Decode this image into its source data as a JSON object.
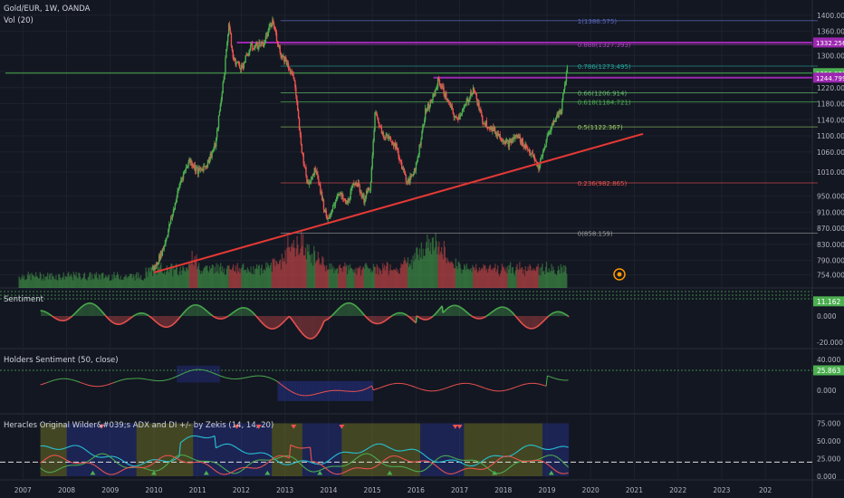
{
  "header": {
    "symbol_title": "Gold/EUR, 1W, OANDA",
    "volume_label": "Vol (20)"
  },
  "colors": {
    "background": "#131722",
    "up": "#4caf50",
    "down": "#ef5350",
    "purple": "#9c27b0",
    "trend": "#e53935",
    "fib_text": "#8bc34a"
  },
  "main_axis": {
    "ticks": [
      "1400.000",
      "1360.000",
      "1300.000",
      "1260.000",
      "1220.000",
      "1180.000",
      "1140.000",
      "1100.000",
      "1060.000",
      "1010.000",
      "950.000",
      "910.000",
      "870.000",
      "830.000",
      "790.000",
      "754.000"
    ],
    "price_tags": [
      {
        "label": "1332.256",
        "color": "#9c27b0"
      },
      {
        "label": "1256.021",
        "color": "#4caf50"
      },
      {
        "label": "1244.799",
        "color": "#9c27b0"
      }
    ]
  },
  "fib_levels": [
    {
      "label": "1(1386.575)",
      "value": 1386.575,
      "color": "#5c6bc0"
    },
    {
      "label": "0.888(1327.393)",
      "value": 1327.393,
      "color": "#ab47bc"
    },
    {
      "label": "0.786(1273.495)",
      "value": 1273.495,
      "color": "#26a69a"
    },
    {
      "label": "0.66(1206.914)",
      "value": 1206.914,
      "color": "#66bb6a"
    },
    {
      "label": "0.618(1184.721)",
      "value": 1184.721,
      "color": "#4caf50"
    },
    {
      "label": "0.5(1122.367)",
      "value": 1122.367,
      "color": "#9ccc65"
    },
    {
      "label": "0.236(982.865)",
      "value": 982.865,
      "color": "#ef5350"
    },
    {
      "label": "0(858.159)",
      "value": 858.159,
      "color": "#9e9e9e"
    }
  ],
  "sentiment_panel": {
    "title": "Sentiment",
    "ticks": [
      "11.162",
      "0.000",
      "-20.000"
    ]
  },
  "holders_panel": {
    "title": "Holders Sentiment (50, close)",
    "ticks": [
      "40.000",
      "25.863",
      "0.000"
    ]
  },
  "adx_panel": {
    "title": "Heracles Original Wilder&#039;s ADX and DI +/- by Zekis (14, 14, 20)",
    "ticks": [
      "75.000",
      "50.000",
      "25.000",
      "0.000"
    ]
  },
  "time_axis": {
    "labels": [
      "2007",
      "2008",
      "2009",
      "2010",
      "2011",
      "2012",
      "2013",
      "2014",
      "2015",
      "2016",
      "2017",
      "2018",
      "2019",
      "2020",
      "2021",
      "2022",
      "2023",
      "202"
    ]
  },
  "chart_data": {
    "type": "candlestick",
    "title": "Gold/EUR, 1W, OANDA",
    "x_range": [
      2006.6,
      2025.2
    ],
    "ylim": [
      735,
      1420
    ],
    "price_path": [
      [
        2010.0,
        770
      ],
      [
        2010.2,
        820
      ],
      [
        2010.4,
        900
      ],
      [
        2010.6,
        990
      ],
      [
        2010.8,
        1040
      ],
      [
        2011.0,
        1010
      ],
      [
        2011.2,
        1030
      ],
      [
        2011.4,
        1080
      ],
      [
        2011.6,
        1260
      ],
      [
        2011.7,
        1380
      ],
      [
        2011.8,
        1290
      ],
      [
        2012.0,
        1270
      ],
      [
        2012.2,
        1320
      ],
      [
        2012.5,
        1330
      ],
      [
        2012.7,
        1385
      ],
      [
        2012.9,
        1300
      ],
      [
        2013.0,
        1290
      ],
      [
        2013.2,
        1240
      ],
      [
        2013.35,
        1080
      ],
      [
        2013.5,
        980
      ],
      [
        2013.7,
        1020
      ],
      [
        2013.9,
        910
      ],
      [
        2014.0,
        890
      ],
      [
        2014.2,
        960
      ],
      [
        2014.4,
        930
      ],
      [
        2014.6,
        990
      ],
      [
        2014.8,
        940
      ],
      [
        2014.95,
        980
      ],
      [
        2015.05,
        1160
      ],
      [
        2015.2,
        1110
      ],
      [
        2015.5,
        1080
      ],
      [
        2015.8,
        980
      ],
      [
        2016.0,
        1030
      ],
      [
        2016.2,
        1160
      ],
      [
        2016.4,
        1200
      ],
      [
        2016.5,
        1240
      ],
      [
        2016.7,
        1190
      ],
      [
        2016.9,
        1140
      ],
      [
        2017.1,
        1170
      ],
      [
        2017.3,
        1220
      ],
      [
        2017.5,
        1140
      ],
      [
        2017.8,
        1110
      ],
      [
        2018.1,
        1080
      ],
      [
        2018.3,
        1100
      ],
      [
        2018.6,
        1060
      ],
      [
        2018.8,
        1020
      ],
      [
        2019.0,
        1100
      ],
      [
        2019.2,
        1150
      ],
      [
        2019.3,
        1160
      ],
      [
        2019.45,
        1270
      ]
    ],
    "volume": {
      "peak_years": [
        2013.3,
        2016.3
      ]
    },
    "trendline": {
      "from": [
        2010.0,
        760
      ],
      "to": [
        2021.2,
        1105
      ]
    },
    "horizontal_lines": [
      {
        "value": 1332.256,
        "color": "#9c27b0",
        "from": 2011.9
      },
      {
        "value": 1244.799,
        "color": "#9c27b0",
        "from": 2016.4
      },
      {
        "value": 1256.021,
        "color": "#4caf50",
        "from": 2006.6
      }
    ],
    "xlabel": "",
    "ylabel": ""
  }
}
